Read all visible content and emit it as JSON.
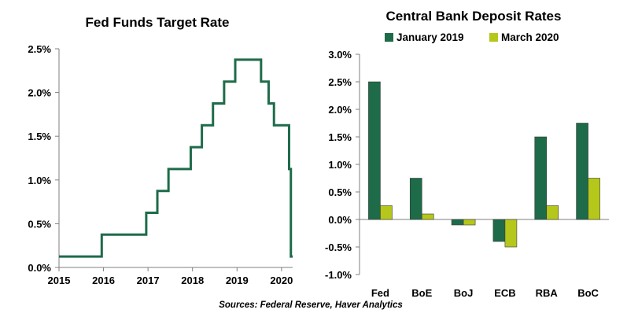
{
  "source": "Sources: Federal Reserve, Haver Analytics",
  "chart_data": [
    {
      "type": "line",
      "step": true,
      "title": "Fed Funds Target Rate",
      "xlabel": "",
      "ylabel": "",
      "xlim": [
        2015,
        2020.25
      ],
      "ylim": [
        0,
        2.5
      ],
      "x_ticks": [
        "2015",
        "2016",
        "2017",
        "2018",
        "2019",
        "2020"
      ],
      "y_ticks": [
        "0.0%",
        "0.5%",
        "1.0%",
        "1.5%",
        "2.0%",
        "2.5%"
      ],
      "color": "#1e6b4a",
      "grid": false,
      "series": [
        {
          "x": [
            2015.0,
            2015.96,
            2016.96,
            2017.21,
            2017.46,
            2017.96,
            2018.21,
            2018.46,
            2018.71,
            2018.96,
            2019.54,
            2019.71,
            2019.83,
            2020.17,
            2020.21
          ],
          "values": [
            0.125,
            0.375,
            0.625,
            0.875,
            1.125,
            1.375,
            1.625,
            1.875,
            2.125,
            2.375,
            2.125,
            1.875,
            1.625,
            1.125,
            0.125
          ]
        }
      ]
    },
    {
      "type": "bar",
      "title": "Central Bank Deposit Rates",
      "xlabel": "",
      "ylabel": "",
      "categories": [
        "Fed",
        "BoE",
        "BoJ",
        "ECB",
        "RBA",
        "BoC"
      ],
      "ylim": [
        -1.0,
        3.0
      ],
      "y_ticks": [
        "3.0%",
        "2.5%",
        "2.0%",
        "1.5%",
        "1.0%",
        "0.5%",
        "0.0%",
        "-0.5%",
        "-1.0%"
      ],
      "legend_position": "top",
      "grid": false,
      "series": [
        {
          "name": "January 2019",
          "color": "#1e6b4a",
          "values": [
            2.5,
            0.75,
            -0.1,
            -0.4,
            1.5,
            1.75
          ]
        },
        {
          "name": "March 2020",
          "color": "#b5c71a",
          "values": [
            0.25,
            0.1,
            -0.1,
            -0.5,
            0.25,
            0.75
          ]
        }
      ]
    }
  ]
}
